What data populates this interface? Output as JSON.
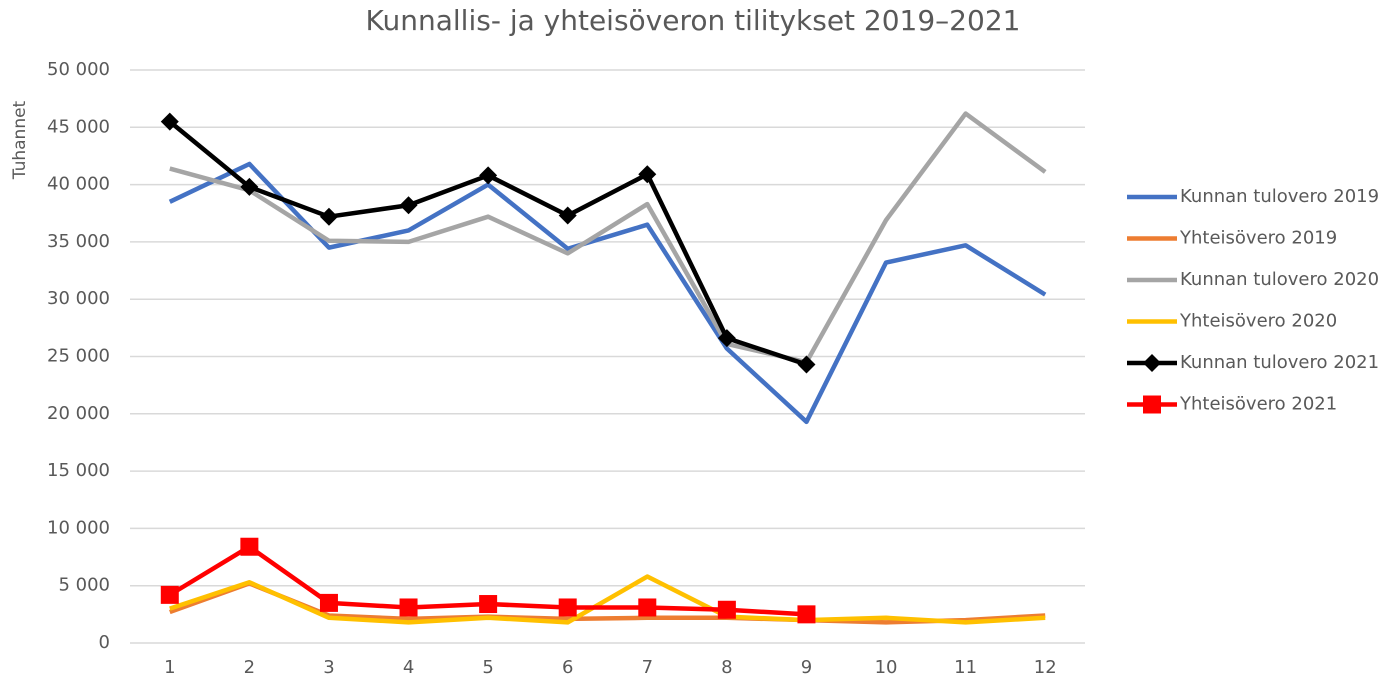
{
  "chart_data": {
    "type": "line",
    "title": "Kunnallis- ja yhteisöveron tilitykset 2019–2021",
    "y_label": "Tuhannet",
    "categories": [
      "1",
      "2",
      "3",
      "4",
      "5",
      "6",
      "7",
      "8",
      "9",
      "10",
      "11",
      "12"
    ],
    "ylim": [
      0,
      50000
    ],
    "yticks": [
      0,
      {
        "value": 5000,
        "label": "5 000"
      },
      {
        "value": 10000,
        "label": "10 000"
      },
      {
        "value": 15000,
        "label": "15 000"
      },
      {
        "value": 20000,
        "label": "20 000"
      },
      {
        "value": 25000,
        "label": "25 000"
      },
      {
        "value": 30000,
        "label": "30 000"
      },
      {
        "value": 35000,
        "label": "35 000"
      },
      {
        "value": 40000,
        "label": "40 000"
      },
      {
        "value": 45000,
        "label": "45 000"
      },
      {
        "value": 50000,
        "label": "50 000"
      }
    ],
    "grid": true,
    "legend": "right",
    "series": [
      {
        "name": "Kunnan tulovero 2019",
        "color": "#4472c4",
        "values": [
          38500,
          41800,
          34500,
          36000,
          40000,
          34400,
          36500,
          25700,
          19300,
          33200,
          34700,
          30400
        ]
      },
      {
        "name": "Yhteisövero 2019",
        "color": "#ed7d31",
        "values": [
          2700,
          5200,
          2400,
          2100,
          2300,
          2100,
          2200,
          2200,
          2000,
          1800,
          2000,
          2400
        ]
      },
      {
        "name": "Kunnan tulovero 2020",
        "color": "#a5a5a5",
        "values": [
          41400,
          39500,
          35100,
          35000,
          37200,
          34000,
          38300,
          26100,
          24500,
          36900,
          46200,
          41100
        ]
      },
      {
        "name": "Yhteisövero 2020",
        "color": "#ffc000",
        "values": [
          3000,
          5300,
          2200,
          1800,
          2200,
          1800,
          5800,
          2300,
          2000,
          2200,
          1800,
          2200
        ]
      },
      {
        "name": "Kunnan tulovero 2021",
        "color": "#000000",
        "marker": "diamond",
        "values": [
          45500,
          39800,
          37200,
          38200,
          40800,
          37300,
          40900,
          26600,
          24300,
          null,
          null,
          null
        ]
      },
      {
        "name": "Yhteisövero 2021",
        "color": "#ff0000",
        "marker": "square",
        "values": [
          4200,
          8400,
          3500,
          3100,
          3400,
          3100,
          3100,
          2900,
          2500,
          null,
          null,
          null
        ]
      }
    ]
  }
}
